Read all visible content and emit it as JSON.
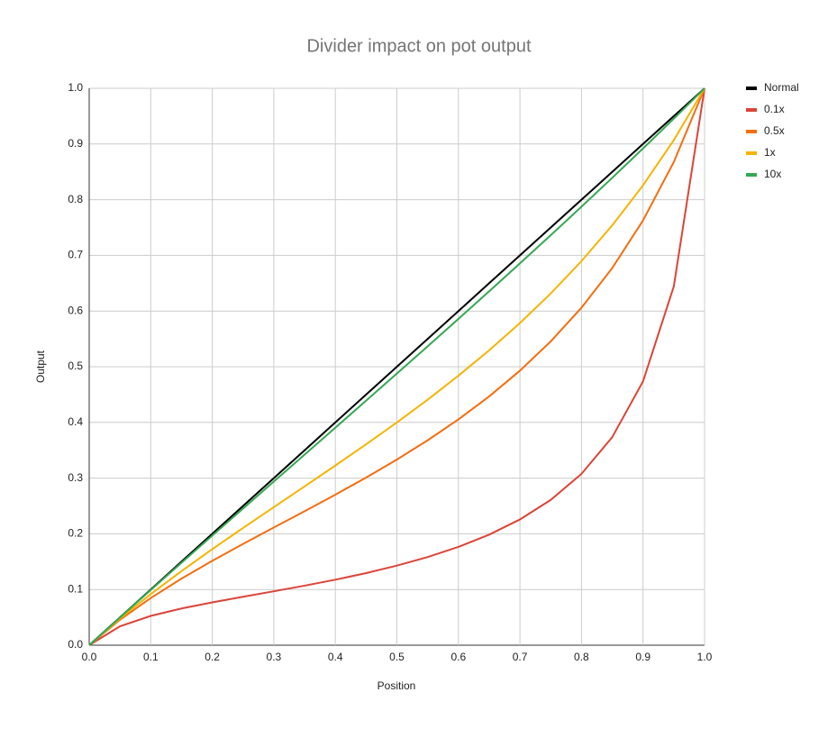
{
  "chart_data": {
    "type": "line",
    "title": "Divider impact on pot output",
    "x_label": "Position",
    "y_label": "Output",
    "x": [
      0,
      0.05,
      0.1,
      0.15,
      0.2,
      0.25,
      0.3,
      0.35,
      0.4,
      0.45,
      0.5,
      0.55,
      0.6,
      0.65,
      0.7,
      0.75,
      0.8,
      0.85,
      0.9,
      0.95,
      1
    ],
    "series": [
      {
        "name": "Normal",
        "color": "#000000",
        "values": [
          0,
          0.05,
          0.1,
          0.15,
          0.2,
          0.25,
          0.3,
          0.35,
          0.4,
          0.45,
          0.5,
          0.55,
          0.6,
          0.65,
          0.7,
          0.75,
          0.8,
          0.85,
          0.9,
          0.95,
          1
        ]
      },
      {
        "name": "0.1x",
        "color": "#db4437",
        "values": [
          0,
          0.0339,
          0.0526,
          0.0659,
          0.0769,
          0.087,
          0.0968,
          0.1069,
          0.1176,
          0.1295,
          0.1429,
          0.1583,
          0.1765,
          0.1985,
          0.2258,
          0.2609,
          0.3077,
          0.3736,
          0.4737,
          0.6441,
          1
        ]
      },
      {
        "name": "0.5x",
        "color": "#f46d0f",
        "values": [
          0,
          0.0457,
          0.0847,
          0.1195,
          0.1515,
          0.1818,
          0.2113,
          0.2405,
          0.2703,
          0.301,
          0.3333,
          0.3679,
          0.4054,
          0.4467,
          0.493,
          0.5455,
          0.6061,
          0.6773,
          0.7627,
          0.8676,
          1
        ]
      },
      {
        "name": "1x",
        "color": "#f4b400",
        "values": [
          0,
          0.0477,
          0.0917,
          0.133,
          0.1724,
          0.2105,
          0.2479,
          0.2851,
          0.3226,
          0.3607,
          0.4,
          0.4409,
          0.4839,
          0.5295,
          0.5785,
          0.6316,
          0.6897,
          0.7539,
          0.8257,
          0.9069,
          1
        ]
      },
      {
        "name": "10x",
        "color": "#34a853",
        "values": [
          0,
          0.0498,
          0.0991,
          0.1481,
          0.1969,
          0.2454,
          0.2938,
          0.3422,
          0.3906,
          0.4391,
          0.4878,
          0.5367,
          0.5859,
          0.6355,
          0.6856,
          0.7362,
          0.7874,
          0.8393,
          0.892,
          0.9455,
          1
        ]
      }
    ],
    "xlim": [
      0,
      1
    ],
    "ylim": [
      0,
      1
    ],
    "xticks": [
      {
        "value": 0,
        "label": "0.0"
      },
      0.1,
      0.2,
      0.3,
      0.4,
      0.5,
      0.6,
      0.7,
      0.8,
      0.9,
      {
        "value": 1,
        "label": "1.0"
      }
    ],
    "yticks": [
      {
        "value": 0,
        "label": "0.0"
      },
      0.1,
      0.2,
      0.3,
      0.4,
      0.5,
      0.6,
      0.7,
      0.8,
      0.9,
      {
        "value": 1,
        "label": "1.0"
      }
    ],
    "grid": true,
    "legend": "right"
  }
}
